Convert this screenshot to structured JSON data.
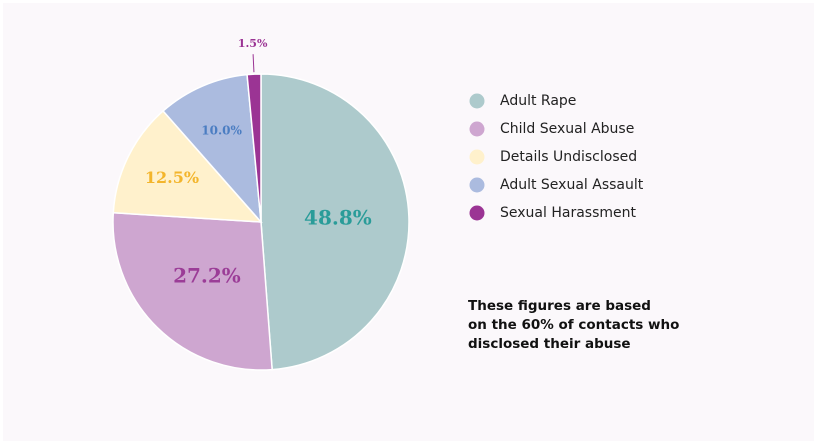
{
  "chart_data": {
    "type": "pie",
    "categories": [
      "Adult Rape",
      "Child Sexual Abuse",
      "Details Undisclosed",
      "Adult Sexual Assault",
      "Sexual Harassment"
    ],
    "values": [
      48.8,
      27.2,
      12.5,
      10.0,
      1.5
    ],
    "value_labels": [
      "48.8%",
      "27.2%",
      "12.5%",
      "10.0%",
      "1.5%"
    ],
    "colors": [
      "#adcacc",
      "#cea6d0",
      "#fff1cc",
      "#abbbdf",
      "#9b3494"
    ],
    "label_colors": [
      "#2a9c99",
      "#9b3d97",
      "#f3b52c",
      "#4b7dc2",
      "#9b3494"
    ],
    "legend": "right",
    "note": [
      "These figures are based",
      "on the 60% of contacts who",
      "disclosed their abuse"
    ]
  }
}
